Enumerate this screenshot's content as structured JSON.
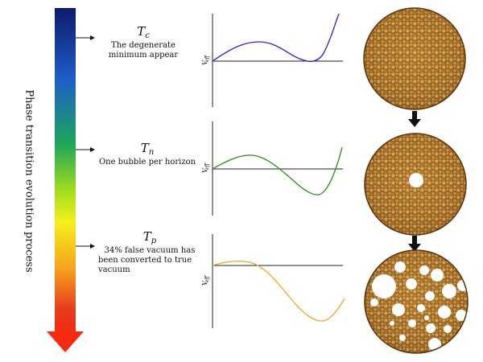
{
  "side_label": "Phase transition evolution process",
  "colors": {
    "gradient": [
      "#0d1a6b",
      "#1e5ec8",
      "#1ea65a",
      "#9fdc1e",
      "#f4f01e",
      "#f6a51e",
      "#e63c1e",
      "#f52a10"
    ],
    "curve_tc": "#2222dd",
    "curve_tn": "#2a8a1a",
    "curve_tp": "#f0a824",
    "axis": "#222222"
  },
  "stages": [
    {
      "name": "T",
      "sub": "c",
      "description": [
        "The degenerate",
        "minimum appear"
      ],
      "ylabel": "V_eff"
    },
    {
      "name": "T",
      "sub": "n",
      "description": [
        "One bubble per horizon"
      ],
      "ylabel": "V_eff"
    },
    {
      "name": "T",
      "sub": "p",
      "description": [
        "34% false vacuum has",
        "been converted to true",
        "vacuum"
      ],
      "ylabel": "V_eff"
    }
  ],
  "bubble_images": [
    {
      "name": "no-bubbles",
      "bubble_count": 0
    },
    {
      "name": "one-bubble",
      "bubble_count": 1
    },
    {
      "name": "many-bubbles",
      "bubble_count": 20
    }
  ]
}
